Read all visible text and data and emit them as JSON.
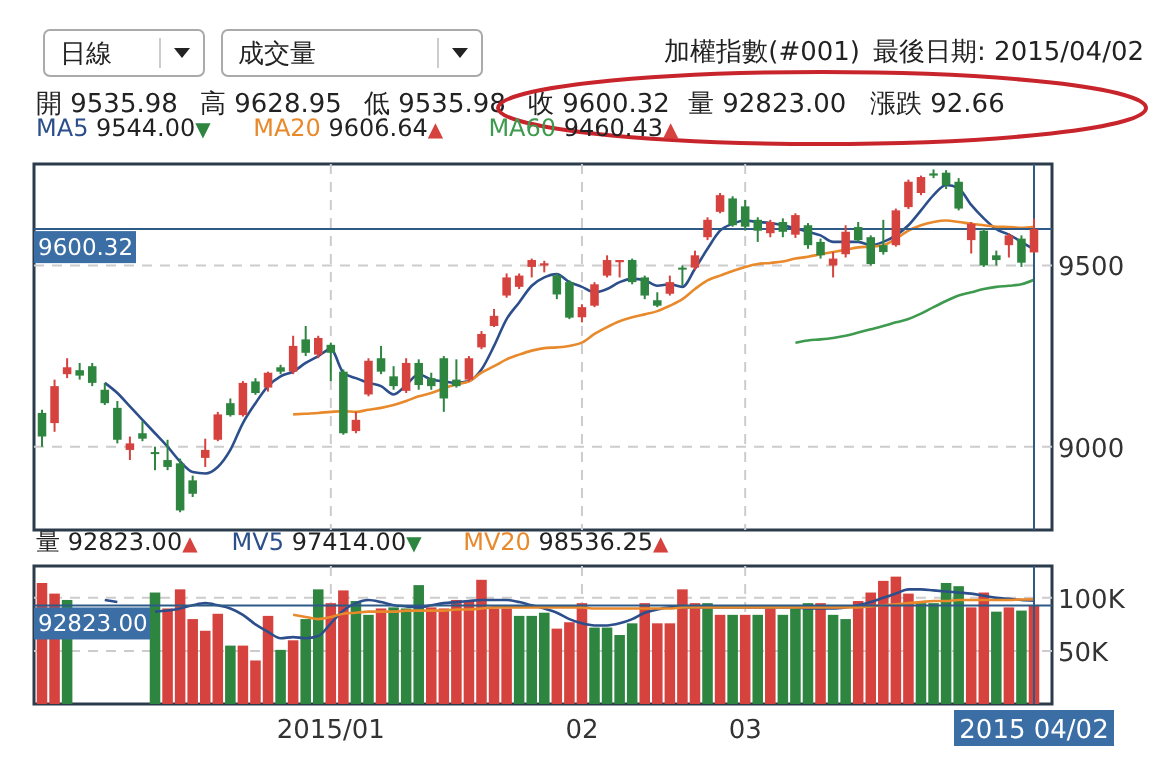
{
  "chart_data": [
    {
      "type": "candlestick",
      "title": "加權指數(#001)",
      "subtitle": "最後日期: 2015/04/02",
      "annotations": [
        "日線",
        "成交量",
        "開 9535.98",
        "高 9628.95",
        "低 9535.98",
        "收 9600.32",
        "量 92823.00",
        "漲跌 92.66"
      ],
      "categories": [
        null,
        null,
        null,
        null,
        null,
        null,
        null,
        null,
        null,
        null,
        null,
        null,
        null,
        null,
        null,
        null,
        null,
        null,
        null,
        null,
        null,
        null,
        null,
        "2015/01",
        null,
        null,
        null,
        null,
        null,
        null,
        null,
        null,
        null,
        null,
        null,
        null,
        null,
        null,
        null,
        null,
        null,
        null,
        null,
        "02",
        null,
        null,
        null,
        null,
        null,
        null,
        null,
        null,
        null,
        null,
        null,
        null,
        "03",
        null,
        null,
        null,
        null,
        null,
        null,
        null,
        null,
        null,
        null,
        null,
        null,
        null,
        null,
        null,
        null,
        null,
        null,
        null,
        null,
        null,
        null,
        "2015 04/02"
      ],
      "ohlc": [
        [
          9093,
          9102,
          9000,
          9028
        ],
        [
          9065,
          9185,
          9041,
          9167
        ],
        [
          9200,
          9244,
          9189,
          9219
        ],
        [
          9211,
          9231,
          9185,
          9196
        ],
        [
          9222,
          9231,
          9167,
          9176
        ],
        [
          9157,
          9176,
          9115,
          9120
        ],
        [
          9107,
          9126,
          9009,
          9019
        ],
        [
          8991,
          9028,
          8963,
          9009
        ],
        [
          9037,
          9070,
          9015,
          9022
        ],
        [
          8985,
          9000,
          8935,
          8981
        ],
        [
          8963,
          9019,
          8935,
          8944
        ],
        [
          8954,
          8967,
          8819,
          8824
        ],
        [
          8907,
          8920,
          8861,
          8870
        ],
        [
          8969,
          9022,
          8944,
          8991
        ],
        [
          9019,
          9096,
          9015,
          9089
        ],
        [
          9120,
          9133,
          9083,
          9087
        ],
        [
          9087,
          9181,
          9083,
          9176
        ],
        [
          9180,
          9189,
          9143,
          9148
        ],
        [
          9163,
          9207,
          9152,
          9204
        ],
        [
          9219,
          9226,
          9200,
          9207
        ],
        [
          9207,
          9306,
          9200,
          9278
        ],
        [
          9296,
          9333,
          9250,
          9259
        ],
        [
          9254,
          9306,
          9244,
          9300
        ],
        [
          9281,
          9287,
          9181,
          9259
        ],
        [
          9207,
          9213,
          9033,
          9037
        ],
        [
          9043,
          9096,
          9037,
          9074
        ],
        [
          9144,
          9244,
          9139,
          9237
        ],
        [
          9244,
          9278,
          9200,
          9207
        ],
        [
          9194,
          9222,
          9157,
          9167
        ],
        [
          9154,
          9244,
          9148,
          9231
        ],
        [
          9231,
          9241,
          9157,
          9170
        ],
        [
          9189,
          9204,
          9157,
          9167
        ],
        [
          9244,
          9250,
          9096,
          9133
        ],
        [
          9185,
          9241,
          9163,
          9167
        ],
        [
          9185,
          9250,
          9180,
          9244
        ],
        [
          9274,
          9319,
          9269,
          9311
        ],
        [
          9333,
          9380,
          9330,
          9361
        ],
        [
          9417,
          9478,
          9411,
          9467
        ],
        [
          9441,
          9478,
          9435,
          9472
        ],
        [
          9496,
          9519,
          9467,
          9515
        ],
        [
          9500,
          9513,
          9481,
          9506
        ],
        [
          9472,
          9478,
          9407,
          9420
        ],
        [
          9454,
          9459,
          9352,
          9356
        ],
        [
          9357,
          9393,
          9343,
          9385
        ],
        [
          9389,
          9454,
          9385,
          9448
        ],
        [
          9472,
          9528,
          9467,
          9515
        ],
        [
          9509,
          9515,
          9467,
          9515
        ],
        [
          9515,
          9519,
          9448,
          9454
        ],
        [
          9467,
          9472,
          9407,
          9417
        ],
        [
          9404,
          9426,
          9385,
          9389
        ],
        [
          9422,
          9472,
          9417,
          9454
        ],
        [
          9494,
          9500,
          9444,
          9491
        ],
        [
          9494,
          9541,
          9487,
          9528
        ],
        [
          9578,
          9633,
          9570,
          9626
        ],
        [
          9648,
          9700,
          9644,
          9694
        ],
        [
          9685,
          9691,
          9607,
          9611
        ],
        [
          9663,
          9681,
          9596,
          9607
        ],
        [
          9626,
          9633,
          9565,
          9596
        ],
        [
          9589,
          9626,
          9578,
          9620
        ],
        [
          9620,
          9630,
          9578,
          9593
        ],
        [
          9585,
          9644,
          9576,
          9639
        ],
        [
          9611,
          9617,
          9546,
          9556
        ],
        [
          9565,
          9574,
          9519,
          9528
        ],
        [
          9500,
          9537,
          9467,
          9519
        ],
        [
          9531,
          9611,
          9522,
          9593
        ],
        [
          9606,
          9620,
          9565,
          9570
        ],
        [
          9578,
          9583,
          9500,
          9504
        ],
        [
          9556,
          9626,
          9530,
          9537
        ],
        [
          9556,
          9657,
          9552,
          9652
        ],
        [
          9661,
          9737,
          9656,
          9731
        ],
        [
          9700,
          9748,
          9694,
          9744
        ],
        [
          9754,
          9765,
          9741,
          9748
        ],
        [
          9756,
          9763,
          9711,
          9722
        ],
        [
          9731,
          9741,
          9652,
          9657
        ],
        [
          9570,
          9620,
          9533,
          9615
        ],
        [
          9596,
          9602,
          9496,
          9500
        ],
        [
          9528,
          9541,
          9500,
          9515
        ],
        [
          9556,
          9589,
          9522,
          9583
        ],
        [
          9574,
          9583,
          9496,
          9507.66
        ],
        [
          9535.98,
          9628.95,
          9535.98,
          9600.32
        ]
      ],
      "colors": [
        "#2e8540",
        "#d6423e",
        "#d6423e",
        "#2e8540",
        "#2e8540",
        "#2e8540",
        "#2e8540",
        "#d6423e",
        "#2e8540",
        "#2e8540",
        "#2e8540",
        "#2e8540",
        "#2e8540",
        "#d6423e",
        "#d6423e",
        "#2e8540",
        "#d6423e",
        "#2e8540",
        "#d6423e",
        "#2e8540",
        "#d6423e",
        "#2e8540",
        "#d6423e",
        "#2e8540",
        "#2e8540",
        "#d6423e",
        "#d6423e",
        "#2e8540",
        "#2e8540",
        "#d6423e",
        "#2e8540",
        "#2e8540",
        "#2e8540",
        "#2e8540",
        "#d6423e",
        "#d6423e",
        "#d6423e",
        "#d6423e",
        "#d6423e",
        "#d6423e",
        "#d6423e",
        "#2e8540",
        "#2e8540",
        "#d6423e",
        "#d6423e",
        "#d6423e",
        "#d6423e",
        "#2e8540",
        "#2e8540",
        "#2e8540",
        "#d6423e",
        "#2e8540",
        "#d6423e",
        "#d6423e",
        "#d6423e",
        "#2e8540",
        "#2e8540",
        "#2e8540",
        "#d6423e",
        "#2e8540",
        "#d6423e",
        "#2e8540",
        "#2e8540",
        "#d6423e",
        "#d6423e",
        "#2e8540",
        "#2e8540",
        "#2e8540",
        "#d6423e",
        "#d6423e",
        "#d6423e",
        "#2e8540",
        "#2e8540",
        "#2e8540",
        "#d6423e",
        "#2e8540",
        "#2e8540",
        "#d6423e",
        "#2e8540",
        "#d6423e"
      ],
      "series": [
        {
          "name": "MA5 9544.00▼",
          "type": "line",
          "color": "#2c4f8c",
          "values": [
            null,
            null,
            null,
            null,
            null,
            9176,
            9148,
            9111,
            9074,
            9037,
            9000,
            8959,
            8930,
            8926,
            8944,
            8991,
            9065,
            9120,
            9167,
            9194,
            9207,
            9231,
            9250,
            9269,
            9204,
            9189,
            9176,
            9167,
            9144,
            9170,
            9200,
            9185,
            9180,
            9176,
            9181,
            9213,
            9278,
            9352,
            9398,
            9444,
            9467,
            9476,
            9454,
            9441,
            9426,
            9435,
            9454,
            9463,
            9459,
            9444,
            9448,
            9441,
            9491,
            9546,
            9596,
            9615,
            9624,
            9620,
            9617,
            9611,
            9602,
            9593,
            9583,
            9565,
            9565,
            9565,
            9556,
            9565,
            9583,
            9611,
            9652,
            9694,
            9722,
            9713,
            9667,
            9630,
            9600,
            9585,
            9565,
            9544
          ]
        },
        {
          "name": "MA20 9606.64▲",
          "type": "line",
          "color": "#e8892c",
          "values": [
            null,
            null,
            null,
            null,
            null,
            null,
            null,
            null,
            null,
            null,
            null,
            null,
            null,
            null,
            null,
            null,
            null,
            null,
            null,
            null,
            9089,
            9091,
            9093,
            9096,
            9098,
            9096,
            9102,
            9107,
            9115,
            9126,
            9139,
            9148,
            9161,
            9172,
            9180,
            9204,
            9222,
            9241,
            9254,
            9265,
            9272,
            9274,
            9278,
            9287,
            9311,
            9330,
            9346,
            9357,
            9365,
            9374,
            9389,
            9407,
            9435,
            9459,
            9472,
            9485,
            9496,
            9504,
            9507,
            9511,
            9519,
            9524,
            9531,
            9537,
            9543,
            9550,
            9552,
            9556,
            9574,
            9596,
            9611,
            9620,
            9624,
            9620,
            9615,
            9611,
            9607,
            9606,
            9604,
            9606.64
          ]
        },
        {
          "name": "MA60 9460.43▲",
          "type": "line",
          "color": "#3d9a4e",
          "values": [
            null,
            null,
            null,
            null,
            null,
            null,
            null,
            null,
            null,
            null,
            null,
            null,
            null,
            null,
            null,
            null,
            null,
            null,
            null,
            null,
            null,
            null,
            null,
            null,
            null,
            null,
            null,
            null,
            null,
            null,
            null,
            null,
            null,
            null,
            null,
            null,
            null,
            null,
            null,
            null,
            null,
            null,
            null,
            null,
            null,
            null,
            null,
            null,
            null,
            null,
            null,
            null,
            null,
            null,
            null,
            null,
            null,
            null,
            null,
            null,
            9287,
            9293,
            9296,
            9300,
            9306,
            9315,
            9324,
            9333,
            9343,
            9352,
            9367,
            9385,
            9402,
            9417,
            9426,
            9435,
            9441,
            9444,
            9448,
            9460.43
          ]
        }
      ],
      "ylim": [
        8770,
        9780
      ],
      "yticks": [
        9000,
        9500
      ],
      "grid": true,
      "tick_labels": "y",
      "legend": "top left",
      "ref_lines": [
        {
          "axis": "y",
          "value": 9600.32,
          "label": "9600.32",
          "color": "#2d5a87"
        },
        {
          "axis": "x",
          "value": "2015 04/02",
          "color": "#2d5a87"
        }
      ]
    },
    {
      "type": "bar",
      "categories": [
        null,
        null,
        null,
        null,
        null,
        null,
        null,
        null,
        null,
        null,
        null,
        null,
        null,
        null,
        null,
        null,
        null,
        null,
        null,
        null,
        null,
        null,
        null,
        "2015/01",
        null,
        null,
        null,
        null,
        null,
        null,
        null,
        null,
        null,
        null,
        null,
        null,
        null,
        null,
        null,
        null,
        null,
        null,
        null,
        "02",
        null,
        null,
        null,
        null,
        null,
        null,
        null,
        null,
        null,
        null,
        null,
        null,
        "03",
        null,
        null,
        null,
        null,
        null,
        null,
        null,
        null,
        null,
        null,
        null,
        null,
        null,
        null,
        null,
        null,
        null,
        null,
        null,
        null,
        null,
        null,
        "2015 04/02"
      ],
      "series": [
        {
          "name": "量 92823.00▲",
          "type": "bar",
          "values": [
            114000,
            104000,
            98000,
            null,
            null,
            null,
            null,
            null,
            null,
            105000,
            90000,
            108000,
            80000,
            69000,
            85000,
            55000,
            55000,
            41000,
            83000,
            51000,
            60000,
            80000,
            108000,
            95000,
            107000,
            97000,
            84000,
            90000,
            91000,
            90000,
            112000,
            91000,
            90000,
            98000,
            97000,
            117000,
            90000,
            90000,
            83000,
            83000,
            86000,
            71000,
            77000,
            95000,
            72000,
            72000,
            65000,
            76000,
            95000,
            76000,
            76000,
            108000,
            95000,
            95000,
            84000,
            84000,
            84000,
            84000,
            93000,
            84000,
            90000,
            95000,
            95000,
            84000,
            80000,
            97000,
            105000,
            116000,
            120000,
            104000,
            95000,
            95000,
            114000,
            111000,
            91000,
            105000,
            87000,
            91000,
            88000,
            92823
          ],
          "colors": [
            "#d6423e",
            "#d6423e",
            "#2e8540",
            null,
            null,
            null,
            null,
            null,
            null,
            "#2e8540",
            "#d6423e",
            "#d6423e",
            "#d6423e",
            "#d6423e",
            "#d6423e",
            "#2e8540",
            "#d6423e",
            "#d6423e",
            "#d6423e",
            "#2e8540",
            "#d6423e",
            "#2e8540",
            "#2e8540",
            "#d6423e",
            "#d6423e",
            "#2e8540",
            "#2e8540",
            "#d6423e",
            "#2e8540",
            "#2e8540",
            "#2e8540",
            "#d6423e",
            "#d6423e",
            "#d6423e",
            "#d6423e",
            "#d6423e",
            "#d6423e",
            "#d6423e",
            "#2e8540",
            "#2e8540",
            "#2e8540",
            "#d6423e",
            "#d6423e",
            "#d6423e",
            "#2e8540",
            "#2e8540",
            "#2e8540",
            "#2e8540",
            "#d6423e",
            "#d6423e",
            "#d6423e",
            "#d6423e",
            "#d6423e",
            "#2e8540",
            "#d6423e",
            "#2e8540",
            "#d6423e",
            "#2e8540",
            "#d6423e",
            "#2e8540",
            "#2e8540",
            "#2e8540",
            "#d6423e",
            "#2e8540",
            "#2e8540",
            "#d6423e",
            "#d6423e",
            "#d6423e",
            "#d6423e",
            "#d6423e",
            "#2e8540",
            "#2e8540",
            "#2e8540",
            "#2e8540",
            "#d6423e",
            "#d6423e",
            "#2e8540",
            "#d6423e",
            "#2e8540",
            "#d6423e"
          ]
        },
        {
          "name": "MV5 97414.00▼",
          "type": "line",
          "color": "#2c4f8c",
          "values": [
            null,
            null,
            null,
            null,
            null,
            98000,
            96000,
            null,
            null,
            87000,
            88000,
            90000,
            93000,
            95000,
            93000,
            90000,
            84000,
            75000,
            68000,
            62000,
            63000,
            62000,
            64000,
            76000,
            88000,
            95000,
            98000,
            96000,
            93000,
            92000,
            91000,
            93000,
            95000,
            96000,
            97000,
            98000,
            98000,
            98000,
            96000,
            93000,
            90000,
            86000,
            80000,
            76000,
            74000,
            74000,
            76000,
            80000,
            86000,
            89000,
            91000,
            91000,
            91000,
            91000,
            91000,
            91000,
            91000,
            91000,
            91000,
            91000,
            91000,
            90000,
            90000,
            90000,
            91000,
            93000,
            96000,
            100000,
            104000,
            108000,
            108000,
            107000,
            106000,
            105000,
            104000,
            102000,
            100000,
            99000,
            98000,
            97414
          ]
        },
        {
          "name": "MV20 98536.25▲",
          "type": "line",
          "color": "#e8892c",
          "values": [
            null,
            null,
            null,
            null,
            null,
            null,
            null,
            null,
            null,
            null,
            null,
            null,
            null,
            null,
            null,
            null,
            null,
            null,
            null,
            null,
            84000,
            82000,
            80000,
            82000,
            85000,
            86000,
            87000,
            87000,
            87000,
            88000,
            88000,
            88000,
            88000,
            89000,
            89000,
            90000,
            91000,
            91000,
            91000,
            91000,
            91000,
            91000,
            91000,
            91000,
            90000,
            90000,
            90000,
            90000,
            90000,
            90000,
            90000,
            91000,
            91000,
            91000,
            91000,
            91000,
            91000,
            91000,
            91000,
            91000,
            91000,
            91000,
            91000,
            91000,
            91000,
            91000,
            92000,
            93000,
            94000,
            95000,
            96000,
            97000,
            97000,
            98000,
            98000,
            98000,
            98000,
            98000,
            98500,
            98536.25
          ]
        }
      ],
      "ylim": [
        0,
        130000
      ],
      "yticks": [
        {
          "value": 50000,
          "label": "50K"
        },
        {
          "value": 100000,
          "label": "100K"
        }
      ],
      "grid": true,
      "legend": "top left",
      "ref_lines": [
        {
          "axis": "y",
          "value": 92823,
          "label": "92823.00",
          "color": "#2d5a87"
        },
        {
          "axis": "x",
          "value": "2015 04/02",
          "color": "#2d5a87"
        }
      ]
    }
  ]
}
